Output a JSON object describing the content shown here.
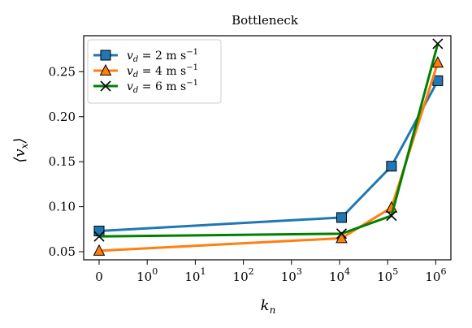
{
  "chart_data": {
    "type": "line",
    "title": "Bottleneck",
    "xlabel": "k",
    "xlabel_sub": "n",
    "ylabel": "⟨v",
    "ylabel_sub": "x",
    "ylabel_close": "⟩",
    "x_scale": "symlog",
    "x_ticks": [
      {
        "value": 0,
        "base": "0",
        "exp": ""
      },
      {
        "value": 1,
        "base": "10",
        "exp": "0"
      },
      {
        "value": 10,
        "base": "10",
        "exp": "1"
      },
      {
        "value": 100,
        "base": "10",
        "exp": "2"
      },
      {
        "value": 1000,
        "base": "10",
        "exp": "3"
      },
      {
        "value": 10000,
        "base": "10",
        "exp": "4"
      },
      {
        "value": 100000,
        "base": "10",
        "exp": "5"
      },
      {
        "value": 1000000,
        "base": "10",
        "exp": "6"
      }
    ],
    "y_ticks": [
      "0.05",
      "0.10",
      "0.15",
      "0.20",
      "0.25"
    ],
    "ylim": [
      0.041,
      0.29
    ],
    "legend_position": "top-left",
    "x": [
      0,
      11000,
      120000,
      1100000
    ],
    "series": [
      {
        "label": "v",
        "label_sub": "d",
        "label_value": " = 2 m s",
        "label_exp": "−1",
        "color": "#1f77b4",
        "marker": "square",
        "values": [
          0.073,
          0.088,
          0.145,
          0.24
        ]
      },
      {
        "label": "v",
        "label_sub": "d",
        "label_value": " = 4 m s",
        "label_exp": "−1",
        "color": "#ff7f0e",
        "marker": "triangle",
        "values": [
          0.051,
          0.065,
          0.099,
          0.26
        ]
      },
      {
        "label": "v",
        "label_sub": "d",
        "label_value": " = 6 m s",
        "label_exp": "−1",
        "color": "#008000",
        "marker": "x",
        "values": [
          0.067,
          0.07,
          0.09,
          0.281
        ]
      }
    ]
  }
}
